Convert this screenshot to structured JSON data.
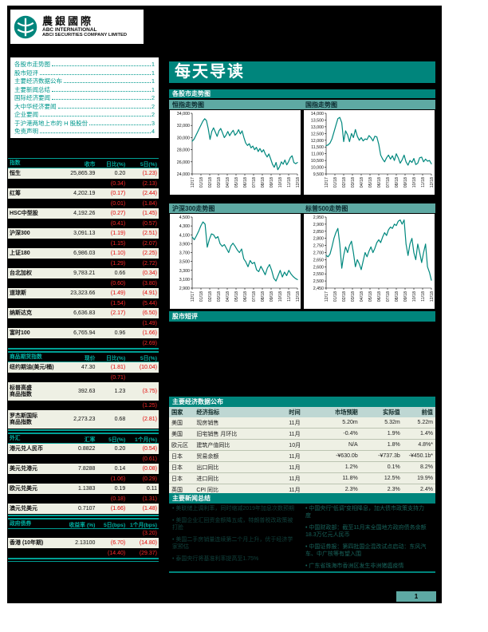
{
  "page": {
    "number": "1"
  },
  "logo": {
    "cn": "農銀國際",
    "en1": "ABC INTERNATIONAL",
    "en2": "ABCI SECURITIES COMPANY LIMITED"
  },
  "banner": {
    "title": "每天导读"
  },
  "sections": {
    "markets": "各股市走势图",
    "comment": "股市短评",
    "econ": "主要经济数据公布",
    "news": "主要新闻总结"
  },
  "toc": [
    {
      "label": "各股市走势图",
      "page": "1"
    },
    {
      "label": "股市短评",
      "page": "1"
    },
    {
      "label": "主要经济数据公布",
      "page": "1"
    },
    {
      "label": "主要新闻总结",
      "page": "1"
    },
    {
      "label": "国际经济要闻",
      "page": "2"
    },
    {
      "label": "大中华经济要闻",
      "page": "2"
    },
    {
      "label": "企业要闻",
      "page": "2"
    },
    {
      "label": "于沪港两地上市的 H 股股份",
      "page": "3"
    },
    {
      "label": "免责声明",
      "page": "4"
    }
  ],
  "left_tables": [
    {
      "headers": [
        "指数",
        "收市",
        "日比(%)",
        "5日(%)"
      ],
      "rows": [
        {
          "name": "恒生",
          "values": [
            "25,865.39",
            "0.20",
            "(1.23)"
          ],
          "dark": false
        },
        {
          "name": "",
          "values": [
            "",
            "(0.34)",
            "(2.13)"
          ],
          "dark": true
        },
        {
          "name": "红筹",
          "values": [
            "4,202.19",
            "(0.17)",
            "(2.44)"
          ],
          "dark": false
        },
        {
          "name": "",
          "values": [
            "",
            "(0.01)",
            "(1.84)"
          ],
          "dark": true
        },
        {
          "name": "HSC中型股",
          "values": [
            "4,192.26",
            "(0.27)",
            "(1.45)"
          ],
          "dark": false
        },
        {
          "name": "",
          "values": [
            "",
            "(0.41)",
            "(0.57)"
          ],
          "dark": true
        },
        {
          "name": "沪深300",
          "values": [
            "3,091.13",
            "(1.19)",
            "(2.51)"
          ],
          "dark": false
        },
        {
          "name": "",
          "values": [
            "",
            "(1.15)",
            "(2.07)"
          ],
          "dark": true
        },
        {
          "name": "上证180",
          "values": [
            "6,986.03",
            "(1.10)",
            "(2.25)"
          ],
          "dark": false
        },
        {
          "name": "",
          "values": [
            "",
            "(1.29)",
            "(2.72)"
          ],
          "dark": true
        },
        {
          "name": "台北加权",
          "values": [
            "9,783.21",
            "0.66",
            "(0.34)"
          ],
          "dark": false
        },
        {
          "name": "",
          "values": [
            "",
            "(0.60)",
            "(3.80)"
          ],
          "dark": true
        },
        {
          "name": "道琼斯",
          "values": [
            "23,323.66",
            "(1.49)",
            "(4.91)"
          ],
          "dark": false
        },
        {
          "name": "",
          "values": [
            "",
            "(1.54)",
            "(5.44)"
          ],
          "dark": true
        },
        {
          "name": "纳斯达克",
          "values": [
            "6,636.83",
            "(2.17)",
            "(6.50)"
          ],
          "dark": false
        },
        {
          "name": "",
          "values": [
            "",
            "",
            "(1.49)"
          ],
          "dark": true
        },
        {
          "name": "富时100",
          "values": [
            "6,765.94",
            "0.96",
            "(1.66)"
          ],
          "dark": false
        },
        {
          "name": "",
          "values": [
            "",
            "",
            "(2.69)"
          ],
          "dark": true
        }
      ]
    },
    {
      "headers": [
        "商品期货指数",
        "现价",
        "日比(%)",
        "5日(%)"
      ],
      "rows": [
        {
          "name": "纽约期油(美元/桶)",
          "values": [
            "47.30",
            "(1.81)",
            "(10.04)"
          ],
          "dark": false
        },
        {
          "name": "",
          "values": [
            "",
            "(0.71)",
            ""
          ],
          "dark": true
        },
        {
          "name": "标普高盛\n商品指数",
          "values": [
            "392.63",
            "1.23",
            "(3.75)"
          ],
          "dark": false
        },
        {
          "name": "",
          "values": [
            "",
            "",
            "(1.25)"
          ],
          "dark": true
        },
        {
          "name": "罗杰斯国际\n商品指数",
          "values": [
            "2,273.23",
            "0.68",
            "(2.81)"
          ],
          "dark": false
        }
      ]
    },
    {
      "headers": [
        "外汇",
        "汇率",
        "5日(%)",
        "1个月(%)"
      ],
      "rows": [
        {
          "name": "港元兑人民币",
          "values": [
            "0.8822",
            "0.20",
            "(0.54)"
          ],
          "dark": false
        },
        {
          "name": "",
          "values": [
            "",
            "",
            "(0.61)"
          ],
          "dark": true
        },
        {
          "name": "美元兑港元",
          "values": [
            "7.8288",
            "0.14",
            "(0.08)"
          ],
          "dark": false
        },
        {
          "name": "",
          "values": [
            "",
            "(1.06)",
            "(0.29)"
          ],
          "dark": true
        },
        {
          "name": "欧元兑美元",
          "values": [
            "1.1383",
            "0.19",
            "0.11"
          ],
          "dark": false
        },
        {
          "name": "",
          "values": [
            "",
            "(0.18)",
            "(1.31)"
          ],
          "dark": true
        },
        {
          "name": "澳元兑美元",
          "values": [
            "0.7107",
            "(1.66)",
            "(1.48)"
          ],
          "dark": false
        }
      ]
    },
    {
      "headers": [
        "政府债券",
        "收益率 (%)",
        "5日(bps)",
        "1个月(bps)"
      ],
      "rows": [
        {
          "name": "",
          "values": [
            "",
            "",
            "(3.20)"
          ],
          "dark": true
        },
        {
          "name": "香港 (10年期)",
          "values": [
            "2.13100",
            "(6.70)",
            "(14.80)"
          ],
          "dark": false
        },
        {
          "name": "",
          "values": [
            "",
            "(14.40)",
            "(29.37)"
          ],
          "dark": true
        }
      ]
    }
  ],
  "chart_data": [
    {
      "type": "line",
      "title": "恒指走势图",
      "ylim": [
        24000,
        34000
      ],
      "ystep": 2000,
      "x_labels": [
        "12/17",
        "01/18",
        "02/18",
        "03/18",
        "04/18",
        "05/18",
        "06/18",
        "07/18",
        "08/18",
        "09/18",
        "10/18",
        "11/18",
        "12/18"
      ],
      "series": [
        29400,
        29700,
        30300,
        30900,
        31500,
        32100,
        32700,
        33100,
        32800,
        31500,
        29700,
        31000,
        31600,
        30900,
        30200,
        31100,
        31500,
        30800,
        30000,
        30400,
        31000,
        30300,
        30800,
        31200,
        30400,
        30700,
        31300,
        30600,
        31100,
        30000,
        29100,
        28700,
        29000,
        28300,
        28600,
        28000,
        28400,
        27700,
        28200,
        27600,
        28000,
        27300,
        26800,
        27300,
        26500,
        25600,
        25100,
        25900,
        24700,
        25200,
        26000,
        25600,
        26300,
        25500,
        26000,
        26700,
        27000,
        25900,
        25700,
        25900
      ]
    },
    {
      "type": "line",
      "title": "国指走势图",
      "ylim": [
        9500,
        14000
      ],
      "ystep": 500,
      "x_labels": [
        "12/17",
        "01/18",
        "02/18",
        "03/18",
        "04/18",
        "05/18",
        "06/18",
        "07/18",
        "08/18",
        "09/18",
        "10/18",
        "11/18",
        "12/18"
      ],
      "series": [
        11600,
        11650,
        11800,
        12100,
        12600,
        13100,
        13600,
        13700,
        13300,
        11900,
        12700,
        12400,
        11900,
        12500,
        12200,
        12800,
        12300,
        12000,
        12200,
        11950,
        12100,
        12050,
        12350,
        12200,
        11950,
        12300,
        12250,
        11700,
        10900,
        10600,
        10400,
        10700,
        10900,
        10600,
        10850,
        10500,
        11000,
        10700,
        10300,
        10550,
        10900,
        10400,
        10150,
        10500,
        10350,
        10650,
        10200,
        10300,
        10700,
        10750,
        10400,
        10600,
        10450,
        10500,
        10250
      ]
    },
    {
      "type": "line",
      "title": "沪深300走势图",
      "ylim": [
        2900,
        4500
      ],
      "ystep": 200,
      "x_labels": [
        "12/17",
        "01/18",
        "02/18",
        "03/18",
        "04/18",
        "05/18",
        "06/18",
        "07/18",
        "08/18",
        "09/18",
        "10/18",
        "11/18",
        "12/18"
      ],
      "series": [
        4050,
        3990,
        4080,
        4180,
        4300,
        4390,
        4340,
        3820,
        4000,
        4120,
        4100,
        4020,
        4060,
        3900,
        3840,
        3880,
        3790,
        3700,
        3850,
        3910,
        3840,
        3760,
        3700,
        3780,
        3560,
        3490,
        3380,
        3520,
        3450,
        3480,
        3310,
        3270,
        3390,
        3300,
        3200,
        3350,
        3430,
        3300,
        3120,
        3060,
        3180,
        3300,
        3150,
        3260,
        3180,
        3300,
        3220,
        3160,
        3120,
        3090
      ]
    },
    {
      "type": "line",
      "title": "标普500走势图",
      "ylim": [
        2450,
        2950
      ],
      "ystep": 50,
      "x_labels": [
        "12/17",
        "01/18",
        "02/18",
        "03/18",
        "04/18",
        "05/18",
        "06/18",
        "07/18",
        "08/18",
        "09/18",
        "10/18",
        "11/18",
        "12/18"
      ],
      "series": [
        2680,
        2670,
        2690,
        2740,
        2800,
        2840,
        2870,
        2760,
        2590,
        2680,
        2740,
        2700,
        2750,
        2780,
        2700,
        2600,
        2650,
        2620,
        2580,
        2640,
        2700,
        2670,
        2710,
        2740,
        2700,
        2730,
        2770,
        2790,
        2770,
        2810,
        2840,
        2820,
        2860,
        2880,
        2870,
        2900,
        2890,
        2920,
        2930,
        2900,
        2930,
        2760,
        2680,
        2760,
        2800,
        2700,
        2650,
        2760,
        2700,
        2630,
        2700,
        2760,
        2600,
        2560,
        2505
      ]
    }
  ],
  "econ_table": {
    "headers": [
      "国家",
      "经济指标",
      "时间",
      "市场预期",
      "实际值",
      "前值"
    ],
    "rows": [
      [
        "美国",
        "现房销售",
        "11月",
        "5.20m",
        "5.32m",
        "5.22m"
      ],
      [
        "美国",
        "旧宅销售 月环比",
        "11月",
        "-0.4%",
        "1.9%",
        "1.4%"
      ],
      [
        "欧元区",
        "建筑产值同比",
        "10月",
        "N/A",
        "1.8%",
        "4.8%*"
      ],
      [
        "日本",
        "贸易余额",
        "11月",
        "-¥630.0b",
        "-¥737.3b",
        "-¥450.1b*"
      ],
      [
        "日本",
        "出口同比",
        "11月",
        "1.2%",
        "0.1%",
        "8.2%"
      ],
      [
        "日本",
        "进口同比",
        "11月",
        "11.8%",
        "12.5%",
        "19.9%"
      ],
      [
        "英国",
        "CPI 同比",
        "11月",
        "2.3%",
        "2.3%",
        "2.4%"
      ]
    ]
  },
  "news": {
    "left": [
      "美联储上调利率，同时缩减2019年加息次数预期",
      "美国企业汇回资金额降五成，特朗普税改政策被打脸",
      "美国二手房销量连续第二个月上升，优于经济学家预估",
      "泰国央行将基准利率提高至1.75%"
    ],
    "right": [
      "中国央行“低调”变相降息，加大债市政策支持力度",
      "中国财政部：截至11月末全国地方政府债务余额18.3万亿元人民币",
      "中国证券报：第四批国企混改试点启动：东风汽车、中广核等有望入围",
      "广东省珠海市香洲区发生非洲猪瘟疫情"
    ]
  },
  "colors": {
    "teal": "#00857c",
    "light_teal_bar": "#5ea9a3",
    "row_bg": "#eef0e4",
    "negative_red": "#e30000",
    "chart_line": "#00887e",
    "header_text_teal": "#00b0a3"
  }
}
